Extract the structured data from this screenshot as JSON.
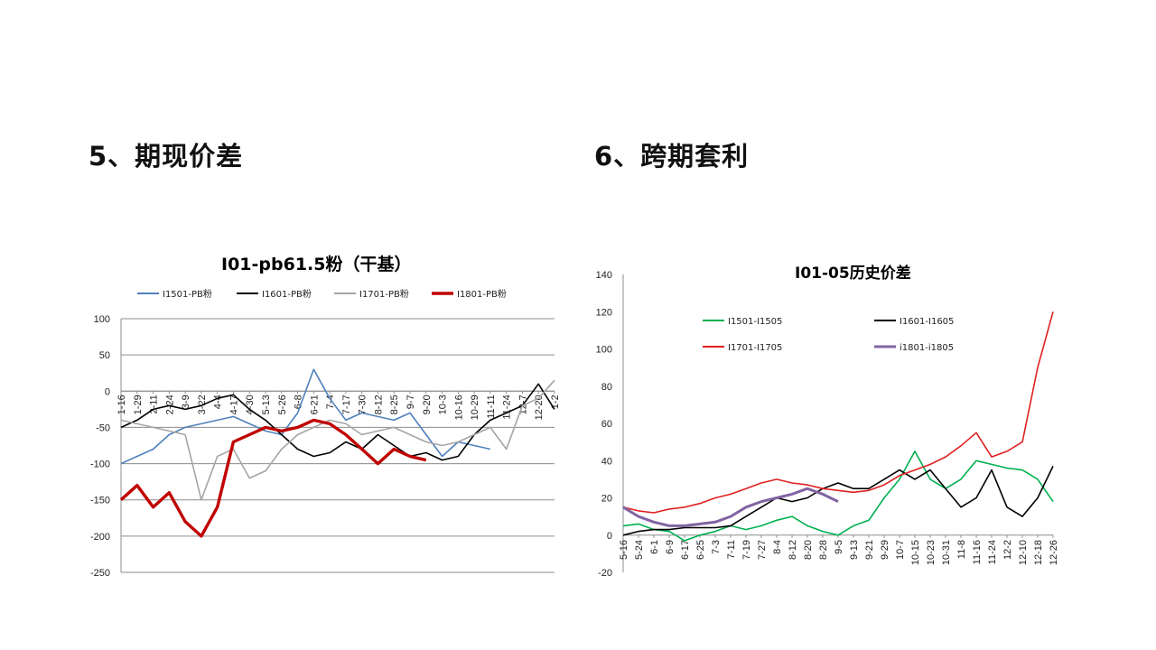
{
  "page": {
    "background": "#ffffff"
  },
  "sections": {
    "left": "5、期现价差",
    "right": "6、跨期套利"
  },
  "chart_data": [
    {
      "type": "line",
      "title": "I01-pb61.5粉（干基）",
      "xlabel": "",
      "ylabel": "",
      "ylim": [
        -250,
        100
      ],
      "yticks": [
        100,
        50,
        0,
        -50,
        -100,
        -150,
        -200,
        -250
      ],
      "grid": true,
      "legend": "top",
      "x": [
        "1-16",
        "1-29",
        "2-11",
        "2-24",
        "3-9",
        "3-22",
        "4-4",
        "4-17",
        "4-30",
        "5-13",
        "5-26",
        "6-8",
        "6-21",
        "7-4",
        "7-17",
        "7-30",
        "8-12",
        "8-25",
        "9-7",
        "9-20",
        "10-3",
        "10-16",
        "10-29",
        "11-11",
        "11-24",
        "12-7",
        "12-20",
        "1-2"
      ],
      "series": [
        {
          "name": "I1501-PB粉",
          "color": "#4f81bd",
          "width": 1.6,
          "values": [
            -100,
            -90,
            -80,
            -60,
            -50,
            -45,
            -40,
            -35,
            -45,
            -55,
            -60,
            -30,
            30,
            -10,
            -40,
            -30,
            -35,
            -40,
            -30,
            -60,
            -90,
            -70,
            -75,
            -80,
            null,
            null,
            null,
            null
          ]
        },
        {
          "name": "I1601-PB粉",
          "color": "#000000",
          "width": 1.6,
          "values": [
            -50,
            -40,
            -25,
            -20,
            -25,
            -20,
            -10,
            -5,
            -25,
            -40,
            -60,
            -80,
            -90,
            -85,
            -70,
            -80,
            -60,
            -75,
            -90,
            -85,
            -95,
            -90,
            -60,
            -40,
            -30,
            -20,
            10,
            -25
          ]
        },
        {
          "name": "I1701-PB粉",
          "color": "#a5a5a5",
          "width": 1.6,
          "values": [
            -40,
            -45,
            -50,
            -55,
            -60,
            -150,
            -90,
            -80,
            -120,
            -110,
            -80,
            -60,
            -50,
            -40,
            -45,
            -60,
            -55,
            -50,
            -60,
            -70,
            -75,
            -70,
            -60,
            -50,
            -80,
            -20,
            -10,
            15
          ]
        },
        {
          "name": "I1801-PB粉",
          "color": "#c00000",
          "width": 3.4,
          "values": [
            -150,
            -130,
            -160,
            -140,
            -180,
            -200,
            -160,
            -70,
            -60,
            -50,
            -55,
            -50,
            -40,
            -45,
            -60,
            -80,
            -100,
            -80,
            -90,
            -95,
            null,
            null,
            null,
            null,
            null,
            null,
            null,
            null
          ]
        }
      ]
    },
    {
      "type": "line",
      "title": "I01-05历史价差",
      "xlabel": "",
      "ylabel": "",
      "ylim": [
        -20,
        140
      ],
      "yticks": [
        140,
        120,
        100,
        80,
        60,
        40,
        20,
        0,
        -20
      ],
      "grid": false,
      "legend": "inside-top",
      "x": [
        "5-16",
        "5-24",
        "6-1",
        "6-9",
        "6-17",
        "6-25",
        "7-3",
        "7-11",
        "7-19",
        "7-27",
        "8-4",
        "8-12",
        "8-20",
        "8-28",
        "9-5",
        "9-13",
        "9-21",
        "9-29",
        "10-7",
        "10-15",
        "10-23",
        "10-31",
        "11-8",
        "11-16",
        "11-24",
        "12-2",
        "12-10",
        "12-18",
        "12-26"
      ],
      "series": [
        {
          "name": "I1501-I1505",
          "color": "#00b050",
          "width": 1.6,
          "values": [
            5,
            6,
            3,
            2,
            -3,
            0,
            2,
            5,
            3,
            5,
            8,
            10,
            5,
            2,
            0,
            5,
            8,
            20,
            30,
            45,
            30,
            25,
            30,
            40,
            38,
            36,
            35,
            30,
            18
          ]
        },
        {
          "name": "I1601-I1605",
          "color": "#000000",
          "width": 1.6,
          "values": [
            0,
            2,
            3,
            3,
            4,
            4,
            4,
            5,
            10,
            15,
            20,
            18,
            20,
            25,
            28,
            25,
            25,
            30,
            35,
            30,
            35,
            25,
            15,
            20,
            35,
            15,
            10,
            20,
            37
          ]
        },
        {
          "name": "I1701-I1705",
          "color": "#e02020",
          "width": 1.6,
          "values": [
            15,
            13,
            12,
            14,
            15,
            17,
            20,
            22,
            25,
            28,
            30,
            28,
            27,
            25,
            24,
            23,
            24,
            27,
            32,
            35,
            38,
            42,
            48,
            55,
            42,
            45,
            50,
            90,
            120
          ]
        },
        {
          "name": "i1801-i1805",
          "color": "#8064a2",
          "width": 3.0,
          "values": [
            15,
            10,
            7,
            5,
            5,
            6,
            7,
            10,
            15,
            18,
            20,
            22,
            25,
            22,
            18,
            null,
            null,
            null,
            null,
            null,
            null,
            null,
            null,
            null,
            null,
            null,
            null,
            null,
            null
          ]
        }
      ]
    }
  ]
}
